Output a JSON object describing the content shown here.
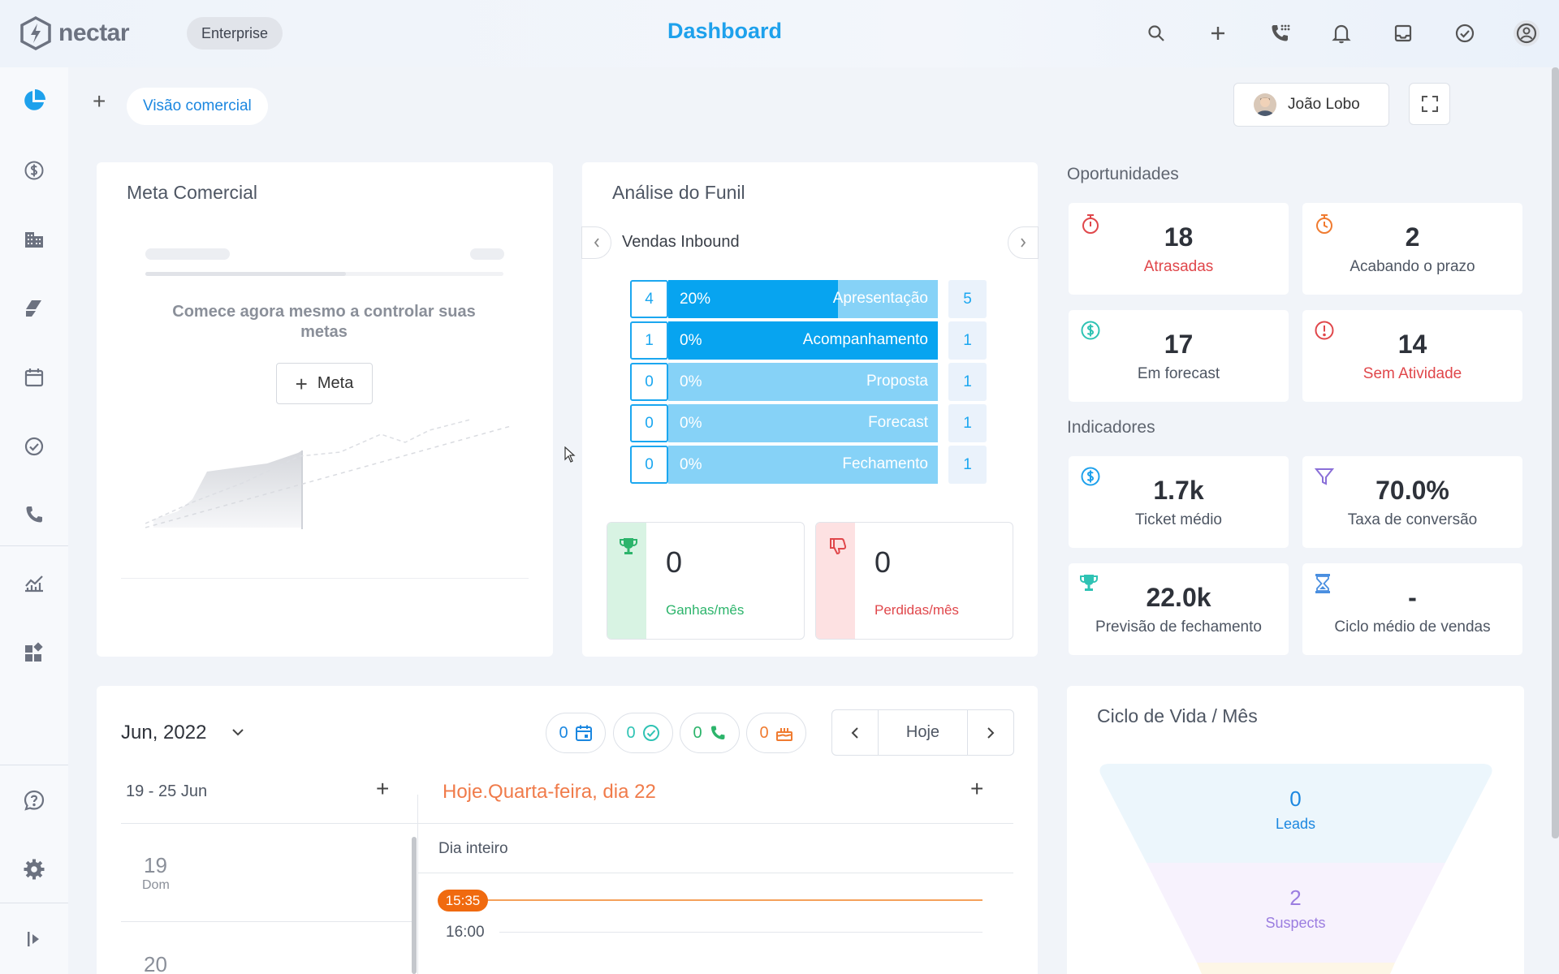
{
  "app": {
    "logo_text": "nectar",
    "plan_badge": "Enterprise",
    "page_title": "Dashboard"
  },
  "colors": {
    "accent": "#1ea1ec",
    "success": "#2cb46b",
    "danger": "#e0474b",
    "warning": "#f07b30"
  },
  "top_icons": [
    "search-icon",
    "plus-icon",
    "phone-dial-icon",
    "bell-icon",
    "inbox-icon",
    "check-circle-icon",
    "account-icon"
  ],
  "sidebar": {
    "items": [
      "pie-chart-icon",
      "dollar-icon",
      "building-icon",
      "eraser-icon",
      "calendar-icon",
      "check-circle-icon",
      "phone-icon",
      "analytics-icon",
      "widgets-icon",
      "help-icon",
      "gear-icon",
      "collapse-icon"
    ]
  },
  "tabs": {
    "add": "+",
    "active_label": "Visão comercial"
  },
  "user": {
    "name": "João Lobo"
  },
  "meta": {
    "title": "Meta Comercial",
    "empty_message": "Comece agora mesmo a controlar suas metas",
    "add_button": "Meta"
  },
  "funil": {
    "title": "Análise do Funil",
    "pipeline": "Vendas Inbound",
    "stages": [
      {
        "count": "4",
        "pct": "20%",
        "name": "Apresentação",
        "side": "5",
        "fill": 0.63
      },
      {
        "count": "1",
        "pct": "0%",
        "name": "Acompanhamento",
        "side": "1",
        "fill": 1.0
      },
      {
        "count": "0",
        "pct": "0%",
        "name": "Proposta",
        "side": "1",
        "fill": 0
      },
      {
        "count": "0",
        "pct": "0%",
        "name": "Forecast",
        "side": "1",
        "fill": 0
      },
      {
        "count": "0",
        "pct": "0%",
        "name": "Fechamento",
        "side": "1",
        "fill": 0
      }
    ],
    "won": {
      "value": "0",
      "label": "Ganhas/mês"
    },
    "lost": {
      "value": "0",
      "label": "Perdidas/mês"
    }
  },
  "oportunidades": {
    "title": "Oportunidades",
    "items": [
      {
        "value": "18",
        "label": "Atrasadas"
      },
      {
        "value": "2",
        "label": "Acabando o prazo"
      },
      {
        "value": "17",
        "label": "Em forecast"
      },
      {
        "value": "14",
        "label": "Sem Atividade"
      }
    ]
  },
  "indicadores": {
    "title": "Indicadores",
    "items": [
      {
        "value": "1.7k",
        "label": "Ticket médio"
      },
      {
        "value": "70.0%",
        "label": "Taxa de conversão"
      },
      {
        "value": "22.0k",
        "label": "Previsão de fechamento"
      },
      {
        "value": "-",
        "label": "Ciclo médio de vendas"
      }
    ]
  },
  "calendar": {
    "month": "Jun, 2022",
    "counters": {
      "events": "0",
      "tasks": "0",
      "calls": "0",
      "birthdays": "0"
    },
    "today_button": "Hoje",
    "week_range": "19 - 25 Jun",
    "day_title": "Hoje.Quarta-feira, dia 22",
    "all_day": "Dia inteiro",
    "now_time": "15:35",
    "next_time": "16:00",
    "days": [
      {
        "num": "19",
        "name": "Dom"
      },
      {
        "num": "20",
        "name": ""
      }
    ]
  },
  "ciclo": {
    "title": "Ciclo de Vida / Mês",
    "stages": [
      {
        "value": "0",
        "label": "Leads"
      },
      {
        "value": "2",
        "label": "Suspects"
      }
    ]
  }
}
